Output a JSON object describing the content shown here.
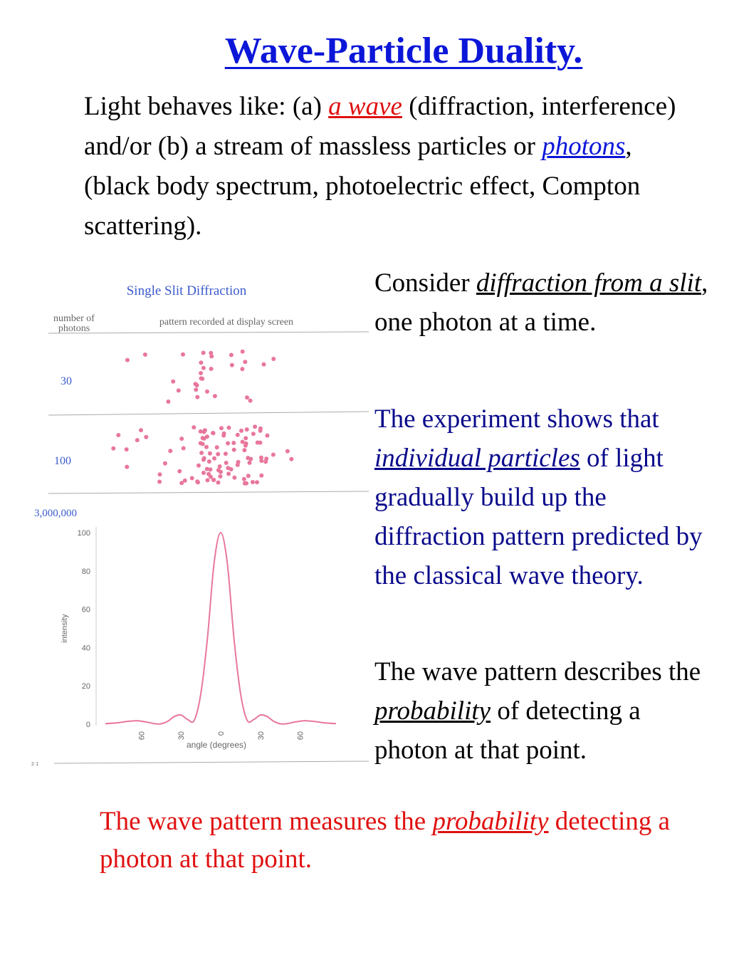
{
  "title": "Wave-Particle Duality.",
  "intro": {
    "t1": "Light behaves like: (a) ",
    "em1": "a wave",
    "t2": " (diffraction, interference) and/or (b) a stream of massless particles or ",
    "em2": "photons",
    "t3": ", (black body spectrum, photoelectric effect, Compton scattering)."
  },
  "consider": {
    "t1": "Consider ",
    "em": "diffraction from a slit",
    "t2": ", one photon at a time."
  },
  "experiment": {
    "t1": "The experiment shows that ",
    "em": "individual particles",
    "t2": " of light gradually build up the diffraction pattern predicted by the classical wave theory."
  },
  "wave_pattern": {
    "t1": "The wave pattern describes the ",
    "em": "probability",
    "t2": " of detecting  a photon at that point."
  },
  "measure": {
    "t1": "The wave pattern measures the ",
    "em": "probability",
    "t2": " detecting a photon at that point."
  },
  "figure": {
    "title": "Single Slit Diffraction",
    "col_label_line1": "number of",
    "col_label_line2": "photons",
    "header": "pattern recorded at display screen",
    "row_labels": [
      "30",
      "100",
      "3,000,000"
    ],
    "corner_mark": "2·1",
    "colors": {
      "dots": "#e8779b",
      "curve": "#e8779b",
      "labels": "#3b5bcc",
      "axis_text": "#666666"
    }
  },
  "chart_data": {
    "type": "line",
    "title": "",
    "xlabel": "angle (degrees)",
    "ylabel": "intensity",
    "x_ticks": [
      "60",
      "30",
      "0",
      "30",
      "60"
    ],
    "y_ticks": [
      "0",
      "20",
      "40",
      "60",
      "80",
      "100"
    ],
    "xlim": [
      -87,
      87
    ],
    "ylim": [
      0,
      100
    ],
    "series": [
      {
        "x": [
          -87,
          -80,
          -75,
          -70,
          -65,
          -60,
          -55,
          -50,
          -45,
          -40,
          -35,
          -30,
          -25,
          -20,
          -15,
          -10,
          -5,
          0,
          5,
          10,
          15,
          20,
          25,
          30,
          35,
          40,
          45,
          50,
          55,
          60,
          65,
          70,
          75,
          80,
          87
        ],
        "y": [
          0.3,
          0.6,
          1.0,
          1.5,
          1.8,
          1.6,
          1.0,
          0.3,
          0.2,
          1.5,
          4.0,
          4.8,
          2.5,
          2.0,
          16,
          45,
          84,
          100,
          84,
          45,
          16,
          2.0,
          2.5,
          4.8,
          4.0,
          1.5,
          0.2,
          0.3,
          1.0,
          1.6,
          1.8,
          1.5,
          1.0,
          0.6,
          0.3
        ]
      }
    ]
  }
}
